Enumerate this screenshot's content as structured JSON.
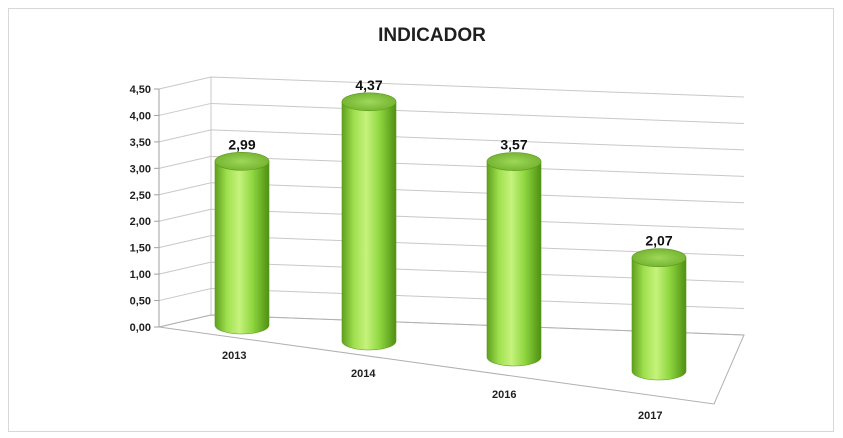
{
  "chart_data": {
    "type": "bar",
    "style": "3d-cylinder",
    "title": "INDICADOR",
    "xlabel": "",
    "ylabel": "",
    "categories": [
      "2013",
      "2014",
      "2016",
      "2017"
    ],
    "values": [
      2.99,
      4.37,
      3.57,
      2.07
    ],
    "value_labels": [
      "2,99",
      "4,37",
      "3,57",
      "2,07"
    ],
    "y_ticks": [
      "0,00",
      "0,50",
      "1,00",
      "1,50",
      "2,00",
      "2,50",
      "3,00",
      "3,50",
      "4,00",
      "4,50"
    ],
    "ylim": [
      0,
      4.5
    ],
    "grid": true,
    "legend": "none",
    "colors": {
      "bar": "#8ed63f",
      "bar_dark": "#4f8f12",
      "bar_light": "#c8f27a",
      "grid": "#c8c8c8"
    }
  }
}
